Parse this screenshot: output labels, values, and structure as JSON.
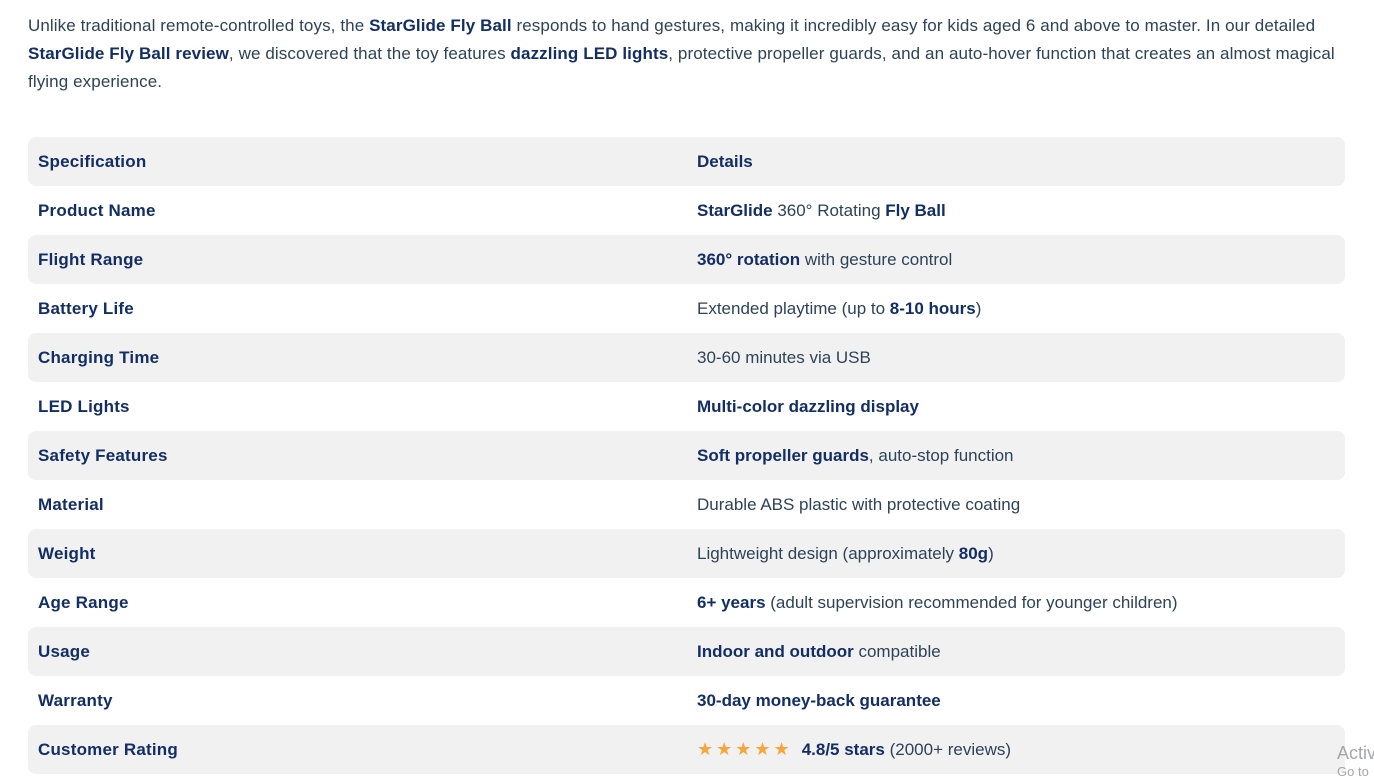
{
  "intro": {
    "segments": [
      {
        "text": "Unlike traditional remote-controlled toys, the ",
        "bold": false
      },
      {
        "text": "StarGlide Fly Ball",
        "bold": true
      },
      {
        "text": " responds to hand gestures, making it incredibly easy for kids aged 6 and above to master. In our detailed ",
        "bold": false
      },
      {
        "text": "StarGlide Fly Ball review",
        "bold": true
      },
      {
        "text": ", we discovered that the toy features ",
        "bold": false
      },
      {
        "text": "dazzling LED lights",
        "bold": true
      },
      {
        "text": ", protective propeller guards, and an auto-hover function that creates an almost magical flying experience.",
        "bold": false
      }
    ]
  },
  "table": {
    "headers": [
      "Specification",
      "Details"
    ],
    "rows": [
      {
        "spec": "Product Name",
        "details": [
          {
            "text": "StarGlide",
            "bold": true
          },
          {
            "text": " 360° Rotating ",
            "bold": false
          },
          {
            "text": "Fly Ball",
            "bold": true
          }
        ]
      },
      {
        "spec": "Flight Range",
        "details": [
          {
            "text": "360° rotation",
            "bold": true
          },
          {
            "text": " with gesture control",
            "bold": false
          }
        ]
      },
      {
        "spec": "Battery Life",
        "details": [
          {
            "text": "Extended playtime (up to ",
            "bold": false
          },
          {
            "text": "8-10 hours",
            "bold": true
          },
          {
            "text": ")",
            "bold": false
          }
        ]
      },
      {
        "spec": "Charging Time",
        "details": [
          {
            "text": "30-60 minutes via USB",
            "bold": false
          }
        ]
      },
      {
        "spec": "LED Lights",
        "details": [
          {
            "text": "Multi-color dazzling display",
            "bold": true
          }
        ]
      },
      {
        "spec": "Safety Features",
        "details": [
          {
            "text": "Soft propeller guards",
            "bold": true
          },
          {
            "text": ", auto-stop function",
            "bold": false
          }
        ]
      },
      {
        "spec": "Material",
        "details": [
          {
            "text": "Durable ABS plastic with protective coating",
            "bold": false
          }
        ]
      },
      {
        "spec": "Weight",
        "details": [
          {
            "text": "Lightweight design (approximately ",
            "bold": false
          },
          {
            "text": "80g",
            "bold": true
          },
          {
            "text": ")",
            "bold": false
          }
        ]
      },
      {
        "spec": "Age Range",
        "details": [
          {
            "text": "6+ years",
            "bold": true
          },
          {
            "text": " (adult supervision recommended for younger children)",
            "bold": false
          }
        ]
      },
      {
        "spec": "Usage",
        "details": [
          {
            "text": "Indoor and outdoor",
            "bold": true
          },
          {
            "text": " compatible",
            "bold": false
          }
        ]
      },
      {
        "spec": "Warranty",
        "details": [
          {
            "text": "30-day money-back guarantee",
            "bold": true
          }
        ]
      },
      {
        "spec": "Customer Rating",
        "details": [
          {
            "text": "★★★★★",
            "stars": true
          },
          {
            "text": "4.8/5 stars",
            "bold": true
          },
          {
            "text": " (2000+ reviews)",
            "bold": false
          }
        ]
      }
    ],
    "rating": {
      "value": "4.8/5",
      "star_count": 5,
      "reviews": "2000+"
    }
  },
  "watermark": {
    "line1": "Activ",
    "line2": "Go to"
  },
  "colors": {
    "accent_navy": "#132e66",
    "body_text": "#2e4258",
    "stripe_gray": "#f1f1f2",
    "star_orange": "#f6a63b",
    "watermark_gray": "#96989b"
  }
}
